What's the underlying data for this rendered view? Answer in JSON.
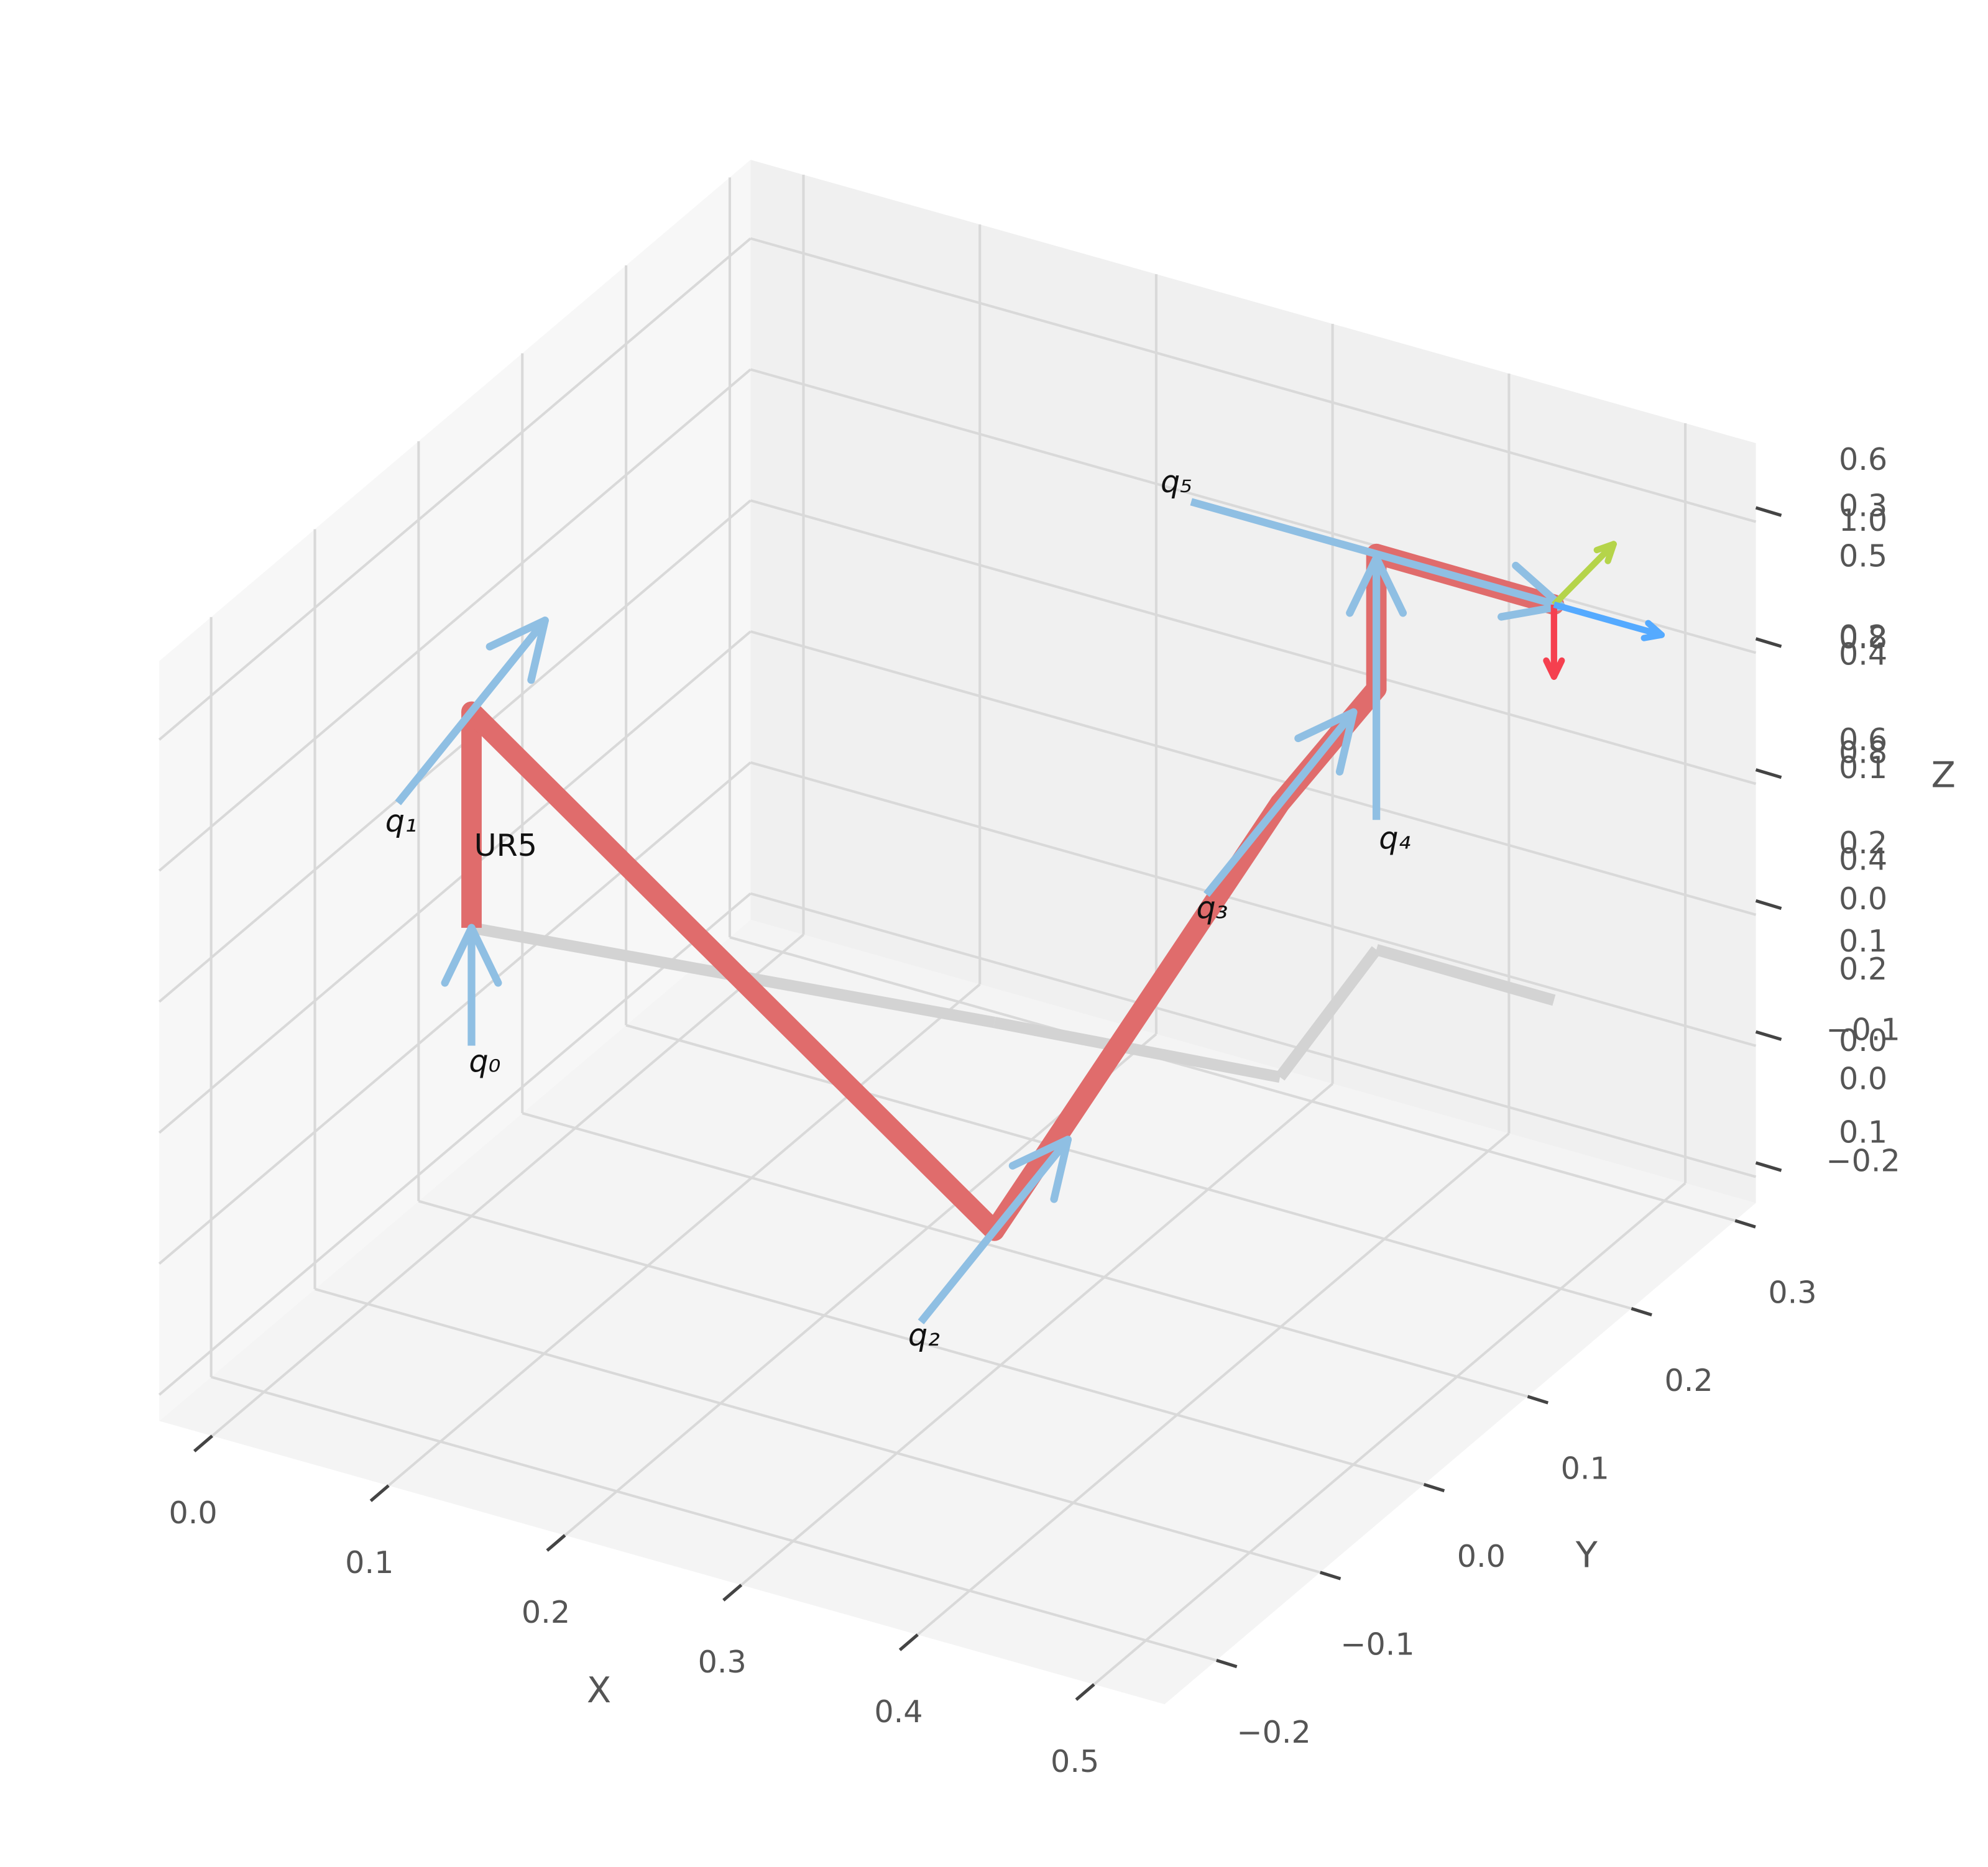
{
  "chart_data": {
    "type": "robot3d",
    "title": "UR5",
    "xlabel": "X",
    "ylabel": "Y",
    "zlabel": "Z",
    "xlim": [
      -0.03,
      0.54
    ],
    "ylim": [
      -0.25,
      0.32
    ],
    "zlim": [
      -0.22,
      0.36
    ],
    "xticks": [
      {
        "value": 0,
        "label": "0.0"
      },
      0.1,
      0.2,
      0.3,
      0.4,
      0.5
    ],
    "yticks": [
      {
        "value": -0.2,
        "label": "−0.2"
      },
      {
        "value": -0.1,
        "label": "−0.1"
      },
      {
        "value": 0,
        "label": "0.0"
      },
      0.1,
      0.2,
      0.3
    ],
    "zticks": [
      {
        "value": -0.2,
        "label": "−0.2"
      },
      {
        "value": -0.1,
        "label": "−0.1"
      },
      {
        "value": 0,
        "label": "0.0"
      },
      0.1,
      0.2,
      0.3
    ],
    "overlapping_zlabels": [
      "0.6",
      "1.0",
      "0.5",
      "0.8",
      "0.4",
      "0.6",
      "0.8",
      "0.2",
      "0.4",
      "0.1",
      "0.2",
      "0.0",
      "0.0",
      "0.1"
    ],
    "grid": true,
    "links": {
      "color": "#e06c6c",
      "x": [
        0,
        0,
        0.27,
        0.419,
        0.396,
        0.396,
        0.497
      ],
      "y": [
        0,
        0,
        0.045,
        0.067,
        0.199,
        0.199,
        0.1985
      ],
      "z": [
        0,
        0.165,
        -0.159,
        0.209,
        0.199,
        0.302,
        0.302
      ]
    },
    "shadow_color": "#d3d3d3",
    "joint_color": "#8fbfe3",
    "joints": [
      {
        "label": "q₀",
        "position": [
          0,
          0,
          -0.045
        ],
        "axis": [
          0,
          0,
          0.09
        ]
      },
      {
        "label": "q₁",
        "position": [
          0,
          0,
          0.165
        ],
        "axis": [
          -0.029,
          0.191,
          0
        ]
      },
      {
        "label": "q₂",
        "position": [
          0.27,
          0.045,
          -0.159
        ],
        "axis": [
          -0.029,
          0.191,
          0
        ]
      },
      {
        "label": "q₃",
        "position": [
          0.419,
          0.067,
          0.209
        ],
        "axis": [
          -0.029,
          0.191,
          0
        ]
      },
      {
        "label": "q₄",
        "position": [
          0.396,
          0.199,
          0.199
        ],
        "axis": [
          0,
          0,
          0.2
        ]
      },
      {
        "label": "q₅",
        "position": [
          0.396,
          0.199,
          0.302
        ],
        "axis": [
          0.21,
          0,
          0
        ]
      }
    ],
    "frame_axes": [
      {
        "color": "#f5404f",
        "vector": [
          0,
          0,
          -0.055
        ]
      },
      {
        "color": "#b5d44a",
        "vector": [
          -0.005,
          0.066,
          0
        ]
      },
      {
        "color": "#55aaff",
        "vector": [
          0.061,
          0,
          0
        ]
      }
    ]
  }
}
